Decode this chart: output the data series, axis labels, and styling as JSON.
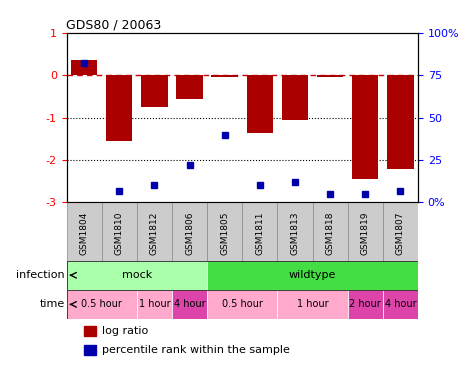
{
  "title": "GDS80 / 20063",
  "samples": [
    "GSM1804",
    "GSM1810",
    "GSM1812",
    "GSM1806",
    "GSM1805",
    "GSM1811",
    "GSM1813",
    "GSM1818",
    "GSM1819",
    "GSM1807"
  ],
  "log_ratio": [
    0.35,
    -1.55,
    -0.75,
    -0.55,
    -0.05,
    -1.35,
    -1.05,
    -0.05,
    -2.45,
    -2.2
  ],
  "percentile": [
    82,
    7,
    10,
    22,
    40,
    10,
    12,
    5,
    5,
    7
  ],
  "infection_groups": [
    {
      "label": "mock",
      "start": 0,
      "end": 4,
      "color": "#AAFFAA"
    },
    {
      "label": "wildtype",
      "start": 4,
      "end": 10,
      "color": "#44DD44"
    }
  ],
  "time_groups": [
    {
      "label": "0.5 hour",
      "start": 0,
      "end": 2,
      "color": "#FFAACC"
    },
    {
      "label": "1 hour",
      "start": 2,
      "end": 3,
      "color": "#FFAACC"
    },
    {
      "label": "4 hour",
      "start": 3,
      "end": 4,
      "color": "#DD44AA"
    },
    {
      "label": "0.5 hour",
      "start": 4,
      "end": 6,
      "color": "#FFAACC"
    },
    {
      "label": "1 hour",
      "start": 6,
      "end": 8,
      "color": "#FFAACC"
    },
    {
      "label": "2 hour",
      "start": 8,
      "end": 9,
      "color": "#DD44AA"
    },
    {
      "label": "4 hour",
      "start": 9,
      "end": 10,
      "color": "#DD44AA"
    }
  ],
  "bar_color": "#AA0000",
  "dot_color": "#0000AA",
  "ylim_left": [
    -3,
    1
  ],
  "ylim_right": [
    0,
    100
  ],
  "yticks_left": [
    -3,
    -2,
    -1,
    0,
    1
  ],
  "ytick_labels_left": [
    "-3",
    "-2",
    "-1",
    "0",
    "1"
  ],
  "yticks_right": [
    0,
    25,
    50,
    75,
    100
  ],
  "ytick_labels_right": [
    "0%",
    "25",
    "50",
    "75",
    "100%"
  ],
  "hline_0_color": "#CC0000",
  "hline_0_style": "--",
  "hline_m1_color": "black",
  "hline_m1_style": ":",
  "hline_m2_color": "black",
  "hline_m2_style": ":",
  "legend_log_ratio": "log ratio",
  "legend_percentile": "percentile rank within the sample",
  "infection_label": "infection",
  "time_label": "time",
  "sample_box_color": "#CCCCCC",
  "sample_box_edge": "#888888"
}
